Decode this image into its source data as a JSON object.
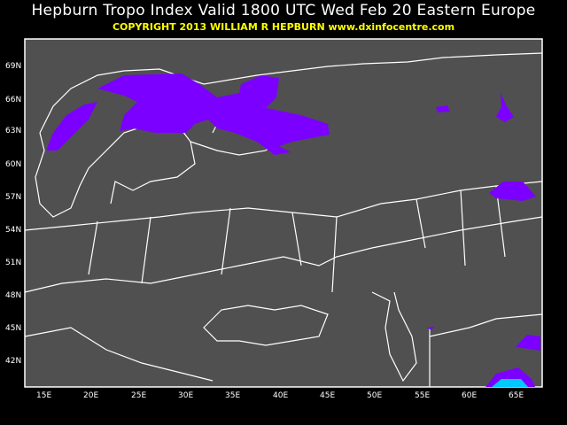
{
  "title": "Hepburn Tropo Index Valid 1800 UTC Wed Feb 20 Eastern Europe",
  "subtitle": "COPYRIGHT 2013   WILLIAM R HEPBURN   www.dxinfocentre.com",
  "colors": {
    "background": "#000000",
    "map": "#505050",
    "borders": "#ffffff",
    "index_level_1": "#7b00ff",
    "index_level_2": "#00c8ff"
  },
  "lat_labels": [
    "69N",
    "66N",
    "63N",
    "60N",
    "57N",
    "54N",
    "51N",
    "48N",
    "45N",
    "42N"
  ],
  "lon_labels": [
    "15E",
    "20E",
    "25E",
    "30E",
    "35E",
    "40E",
    "45E",
    "50E",
    "55E",
    "60E",
    "65E"
  ]
}
